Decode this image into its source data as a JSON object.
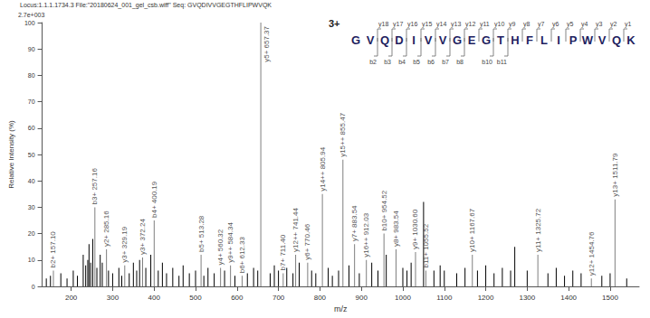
{
  "chart_data": {
    "type": "bar",
    "title": "Locus:1.1.1.1734.3 File:\"20180624_001_gel_csb.wiff\" Seq: GVQDIVVGEGTHFLIPWVQK",
    "ymax_label": "2.7e+003",
    "xlabel": "m/z",
    "ylabel": "Relative Intensity (%)",
    "xlim": [
      130,
      1570
    ],
    "xticks": [
      200,
      300,
      400,
      500,
      600,
      700,
      800,
      900,
      1000,
      1100,
      1200,
      1300,
      1400,
      1500
    ],
    "ylim": [
      0,
      100
    ],
    "yticks": [
      0,
      10,
      20,
      30,
      40,
      50,
      60,
      70,
      80,
      90,
      100
    ],
    "grid": false,
    "data_labels": true,
    "fragment_map": {
      "charge": "3+",
      "sequence": "GVQDIVVGEGTHFLIPWVQK",
      "y_ions": [
        "y18",
        "y17",
        "y16",
        "y15",
        "y14",
        "y13",
        "y12",
        "y11",
        "y10",
        "y9",
        "y8",
        "y7",
        "y6",
        "y5",
        "y4",
        "y3",
        "y2",
        "y1"
      ],
      "b_ions": [
        "b2",
        "b3",
        "b4",
        "b5",
        "b6",
        "b7",
        "b8",
        "b10",
        "b11"
      ]
    },
    "series": [
      {
        "color": "#000000",
        "x": [
          140,
          150,
          175,
          190,
          205,
          215,
          229,
          235,
          240,
          243,
          247,
          252,
          262,
          270,
          275,
          290,
          300,
          315,
          322,
          340,
          350,
          358,
          365,
          380,
          392,
          410,
          420,
          430,
          445,
          460,
          470,
          485,
          500,
          520,
          530,
          545,
          570,
          595,
          625,
          640,
          650,
          680,
          690,
          700,
          720,
          735,
          750,
          780,
          790,
          820,
          830,
          845,
          870,
          895,
          925,
          940,
          960,
          1000,
          1010,
          1020,
          1050,
          1075,
          1090,
          1100,
          1130,
          1150,
          1180,
          1200,
          1220,
          1240,
          1260,
          1270,
          1300,
          1350,
          1370,
          1390,
          1410,
          1430,
          1480,
          1500,
          1540
        ],
        "values": [
          3,
          4,
          5,
          3,
          6,
          4,
          12,
          8,
          10,
          16,
          9,
          18,
          7,
          12,
          9,
          6,
          5,
          7,
          4,
          5,
          9,
          6,
          10,
          7,
          12,
          6,
          9,
          5,
          7,
          4,
          8,
          5,
          6,
          4,
          7,
          5,
          6,
          4,
          5,
          7,
          6,
          5,
          8,
          6,
          7,
          5,
          9,
          6,
          5,
          7,
          4,
          6,
          8,
          5,
          9,
          6,
          12,
          7,
          6,
          9,
          32,
          6,
          8,
          6,
          5,
          7,
          6,
          8,
          5,
          7,
          6,
          15,
          6,
          5,
          7,
          4,
          6,
          5,
          4,
          5,
          3
        ]
      },
      {
        "color": "#7f7f7f",
        "x": [
          157.1,
          257.16,
          285.16,
          329.19,
          372.24,
          400.19,
          513.28,
          560.32,
          584.34,
          612.33,
          657.37,
          711.4,
          741.44,
          770.46,
          805.94,
          855.47,
          883.54,
          912.03,
          954.52,
          983.54,
          1030.6,
          1055.52,
          1167.67,
          1325.72,
          1454.76,
          1511.79
        ],
        "values": [
          6,
          30,
          14,
          8,
          11,
          25,
          12,
          7,
          8,
          4,
          100,
          5,
          12,
          9,
          35,
          48,
          16,
          10,
          20,
          14,
          13,
          6,
          12,
          12,
          3,
          33
        ],
        "value_labels": [
          "b2+ 157.10",
          "b3+ 257.16",
          "y2+ 285.16",
          "y3+ 329.19",
          "y3+ 372.24",
          "b4+ 400.19",
          "b5+ 513.28",
          "y4+ 560.32",
          "y9++ 584.34",
          "b6+ 612.33",
          "y5+ 657.37",
          "b7+ 711.40",
          "y12++ 741.44",
          "y6+ 770.46",
          "y14++ 805.94",
          "y15++ 855.47",
          "y7+ 883.54",
          "y16++ 912.03",
          "b10+ 954.52",
          "y8+ 983.54",
          "y9+ 1030.60",
          "b11+ 1055.52",
          "y10+ 1167.67",
          "y11+ 1325.72",
          "y12+ 1454.76",
          "y13+ 1511.79"
        ]
      }
    ]
  }
}
